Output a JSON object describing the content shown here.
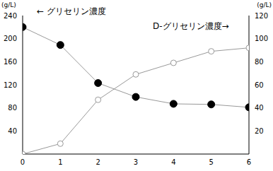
{
  "chart_data": {
    "type": "line",
    "x": [
      0,
      1,
      2,
      3,
      4,
      5,
      6
    ],
    "xlim": [
      0,
      6
    ],
    "xticks": [
      0,
      1,
      2,
      3,
      4,
      5,
      6
    ],
    "ylabel": "(g/L)",
    "y2label": "(g/L)",
    "ylim": [
      0,
      240
    ],
    "yticks": [
      40,
      80,
      120,
      160,
      200,
      240
    ],
    "y2lim": [
      0,
      120
    ],
    "y2ticks": [
      20,
      40,
      60,
      80,
      100,
      120
    ],
    "grid": false,
    "series": [
      {
        "name": "← グリセリン濃度",
        "color": "#000000",
        "marker": "filled_circle",
        "values": [
          220,
          189,
          123,
          99,
          87,
          86,
          81
        ]
      },
      {
        "name": "D-グリセリン濃度→",
        "color": "#999999",
        "marker": "open_circle",
        "axis": "y2",
        "values": [
          0,
          9,
          47,
          69,
          79,
          89,
          92
        ]
      }
    ]
  }
}
